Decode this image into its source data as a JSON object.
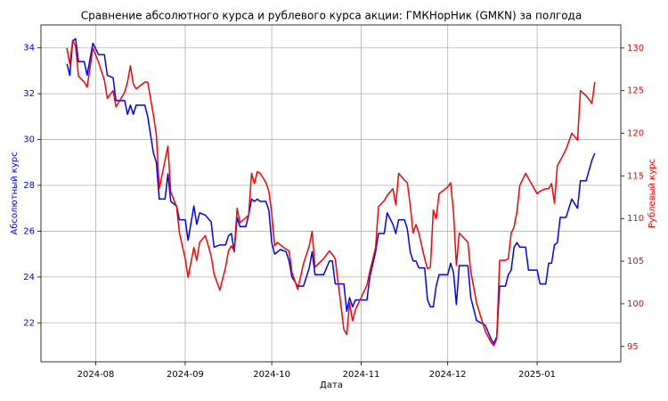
{
  "chart_data": {
    "type": "line",
    "title": "Сравнение абсолютного курса и рублевого курса акции: ГМКНорНик (GMKN) за полгода",
    "xlabel": "Дата",
    "ylabel": "Абсолютный курс",
    "y2label": "Рублевый курс",
    "x": [
      "2024-07-22",
      "2024-07-23",
      "2024-07-24",
      "2024-07-25",
      "2024-07-26",
      "2024-07-28",
      "2024-07-29",
      "2024-07-31",
      "2024-08-02",
      "2024-08-04",
      "2024-08-05",
      "2024-08-07",
      "2024-08-08",
      "2024-08-11",
      "2024-08-12",
      "2024-08-13",
      "2024-08-14",
      "2024-08-15",
      "2024-08-18",
      "2024-08-19",
      "2024-08-21",
      "2024-08-22",
      "2024-08-23",
      "2024-08-25",
      "2024-08-26",
      "2024-08-27",
      "2024-08-29",
      "2024-08-30",
      "2024-09-01",
      "2024-09-02",
      "2024-09-04",
      "2024-09-05",
      "2024-09-06",
      "2024-09-08",
      "2024-09-10",
      "2024-09-11",
      "2024-09-13",
      "2024-09-15",
      "2024-09-16",
      "2024-09-17",
      "2024-09-18",
      "2024-09-19",
      "2024-09-20",
      "2024-09-22",
      "2024-09-23",
      "2024-09-24",
      "2024-09-25",
      "2024-09-26",
      "2024-09-27",
      "2024-09-29",
      "2024-09-30",
      "2024-10-01",
      "2024-10-02",
      "2024-10-03",
      "2024-10-04",
      "2024-10-06",
      "2024-10-07",
      "2024-10-08",
      "2024-10-10",
      "2024-10-12",
      "2024-10-14",
      "2024-10-15",
      "2024-10-16",
      "2024-10-19",
      "2024-10-21",
      "2024-10-22",
      "2024-10-23",
      "2024-10-26",
      "2024-10-27",
      "2024-10-28",
      "2024-10-29",
      "2024-10-30",
      "2024-11-03",
      "2024-11-04",
      "2024-11-06",
      "2024-11-07",
      "2024-11-09",
      "2024-11-10",
      "2024-11-12",
      "2024-11-13",
      "2024-11-14",
      "2024-11-16",
      "2024-11-17",
      "2024-11-18",
      "2024-11-19",
      "2024-11-20",
      "2024-11-21",
      "2024-11-23",
      "2024-11-24",
      "2024-11-25",
      "2024-11-26",
      "2024-11-27",
      "2024-11-28",
      "2024-12-01",
      "2024-12-02",
      "2024-12-03",
      "2024-12-04",
      "2024-12-05",
      "2024-12-08",
      "2024-12-09",
      "2024-12-11",
      "2024-12-14",
      "2024-12-16",
      "2024-12-17",
      "2024-12-18",
      "2024-12-19",
      "2024-12-21",
      "2024-12-22",
      "2024-12-23",
      "2024-12-24",
      "2024-12-25",
      "2024-12-26",
      "2024-12-28",
      "2024-12-29",
      "2025-01-01",
      "2025-01-02",
      "2025-01-04",
      "2025-01-05",
      "2025-01-06",
      "2025-01-07",
      "2025-01-08",
      "2025-01-09",
      "2025-01-11",
      "2025-01-13",
      "2025-01-15",
      "2025-01-16",
      "2025-01-18",
      "2025-01-20",
      "2025-01-21"
    ],
    "series": [
      {
        "name": "Абсолютный курс",
        "color": "#0000ff",
        "axis": "y",
        "values": [
          33.3,
          32.8,
          34.3,
          34.4,
          33.4,
          33.4,
          32.8,
          34.2,
          33.7,
          33.7,
          32.8,
          32.7,
          31.7,
          31.7,
          31.1,
          31.5,
          31.1,
          31.5,
          31.5,
          31.0,
          29.4,
          29.0,
          27.4,
          27.4,
          28.5,
          27.3,
          27.1,
          26.5,
          26.5,
          25.6,
          27.1,
          26.3,
          26.8,
          26.7,
          26.4,
          25.3,
          25.4,
          25.4,
          25.8,
          25.9,
          25.1,
          26.6,
          26.2,
          26.2,
          26.7,
          27.4,
          27.3,
          27.4,
          27.3,
          27.3,
          26.9,
          25.5,
          25.0,
          25.1,
          25.2,
          25.1,
          24.7,
          24.0,
          23.6,
          23.6,
          24.4,
          25.1,
          24.1,
          24.1,
          24.7,
          24.7,
          23.7,
          23.7,
          22.5,
          23.1,
          22.7,
          23.0,
          23.0,
          24.0,
          25.1,
          25.9,
          25.9,
          26.8,
          26.3,
          25.9,
          26.5,
          26.5,
          26.1,
          25.1,
          24.7,
          24.7,
          24.4,
          24.4,
          23.0,
          22.7,
          22.7,
          23.6,
          24.1,
          24.1,
          24.6,
          24.2,
          22.8,
          24.5,
          24.5,
          23.1,
          22.1,
          21.9,
          21.3,
          21.1,
          21.4,
          23.6,
          23.6,
          24.1,
          24.3,
          25.3,
          25.5,
          25.3,
          25.3,
          24.3,
          24.3,
          23.7,
          23.7,
          24.6,
          24.6,
          25.4,
          25.5,
          26.6,
          26.6,
          27.4,
          27.0,
          28.2,
          28.2,
          29.1,
          29.4
        ]
      },
      {
        "name": "Рублевый курс",
        "color": "#ff0000",
        "axis": "y2",
        "values": [
          130.0,
          128.1,
          130.9,
          130.2,
          126.7,
          126.0,
          125.4,
          130.0,
          128.3,
          126.2,
          124.1,
          125.0,
          123.1,
          124.8,
          126.0,
          127.9,
          125.8,
          125.2,
          126.0,
          126.0,
          122.1,
          119.8,
          113.5,
          116.8,
          118.5,
          113.1,
          111.4,
          108.3,
          105.3,
          103.1,
          106.6,
          105.1,
          107.2,
          108.0,
          105.6,
          103.5,
          101.6,
          104.3,
          106.2,
          106.8,
          106.2,
          111.2,
          109.5,
          110.1,
          110.4,
          115.3,
          114.1,
          115.5,
          115.3,
          114.2,
          113.2,
          110.6,
          106.8,
          107.2,
          106.9,
          106.4,
          106.2,
          103.7,
          101.7,
          104.7,
          106.8,
          108.5,
          104.3,
          105.3,
          106.2,
          105.8,
          105.3,
          97.0,
          96.4,
          100.1,
          98.0,
          99.3,
          102.2,
          103.8,
          106.6,
          111.4,
          112.1,
          112.7,
          113.5,
          111.6,
          115.3,
          114.5,
          114.2,
          111.6,
          108.3,
          109.3,
          108.3,
          105.3,
          104.1,
          104.3,
          111.0,
          110.0,
          112.9,
          113.7,
          114.2,
          110.8,
          104.5,
          108.3,
          107.2,
          103.8,
          100.1,
          96.8,
          95.5,
          95.1,
          95.9,
          105.1,
          105.1,
          105.3,
          108.3,
          109.0,
          110.8,
          113.9,
          115.3,
          114.7,
          112.9,
          113.2,
          113.5,
          113.5,
          114.1,
          111.8,
          116.2,
          116.8,
          118.1,
          120.0,
          119.2,
          125.0,
          124.4,
          123.5,
          126.0
        ]
      }
    ],
    "xlim": [
      "2024-07-13",
      "2025-01-30"
    ],
    "xticks": [
      {
        "value": "2024-08-01",
        "label": "2024-08"
      },
      {
        "value": "2024-09-01",
        "label": "2024-09"
      },
      {
        "value": "2024-10-01",
        "label": "2024-10"
      },
      {
        "value": "2024-11-01",
        "label": "2024-11"
      },
      {
        "value": "2024-12-01",
        "label": "2024-12"
      },
      {
        "value": "2025-01-01",
        "label": "2025-01"
      }
    ],
    "ylim": [
      20.3,
      35.0
    ],
    "yticks": [
      22,
      24,
      26,
      28,
      30,
      32,
      34
    ],
    "y2lim": [
      93.2,
      132.7
    ],
    "y2ticks": [
      95,
      100,
      105,
      110,
      115,
      120,
      125,
      130
    ],
    "grid": true
  }
}
